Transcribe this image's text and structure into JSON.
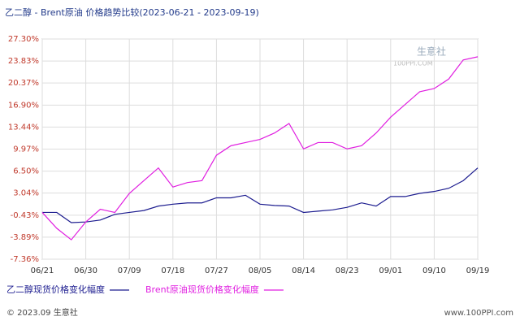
{
  "chart_data": {
    "type": "line",
    "title": "乙二醇 - Brent原油 价格趋势比较(2023-06-21 - 2023-09-19)",
    "categories": [
      "06/21",
      null,
      null,
      "06/30",
      null,
      null,
      "07/09",
      null,
      null,
      "07/18",
      null,
      null,
      "07/27",
      null,
      null,
      "08/05",
      null,
      null,
      "08/14",
      null,
      null,
      "08/23",
      null,
      null,
      "09/01",
      null,
      null,
      "09/10",
      null,
      null,
      "09/19"
    ],
    "series": [
      {
        "name": "乙二醇现货价格变化幅度",
        "color": "#1c1c8f",
        "values": [
          0,
          0,
          -1.6,
          -1.5,
          -1.2,
          -0.3,
          0,
          0.3,
          1.0,
          1.3,
          1.5,
          1.5,
          2.3,
          2.3,
          2.7,
          1.3,
          1.1,
          1.0,
          0,
          0.2,
          0.4,
          0.8,
          1.5,
          1.0,
          2.5,
          2.5,
          3.0,
          3.3,
          3.8,
          5.0,
          7.0
        ]
      },
      {
        "name": "Brent原油现货价格变化幅度",
        "color": "#e01ee0",
        "values": [
          0,
          -2.5,
          -4.3,
          -1.5,
          0.5,
          0,
          3,
          5,
          7,
          4,
          4.7,
          5,
          9,
          10.5,
          11,
          11.5,
          12.5,
          14,
          10,
          11,
          11,
          10,
          10.5,
          12.5,
          15,
          17,
          19,
          19.5,
          21,
          24,
          24.5
        ]
      }
    ],
    "ylim": [
      -7.36,
      27.3
    ],
    "yticks": [
      {
        "value": -7.36,
        "label": "-7.36%"
      },
      {
        "value": -3.89,
        "label": "-3.89%"
      },
      {
        "value": -0.43,
        "label": "-0.43%"
      },
      {
        "value": 3.04,
        "label": "3.04%"
      },
      {
        "value": 6.5,
        "label": "6.50%"
      },
      {
        "value": 9.97,
        "label": "9.97%"
      },
      {
        "value": 13.44,
        "label": "13.44%"
      },
      {
        "value": 16.9,
        "label": "16.90%"
      },
      {
        "value": 20.37,
        "label": "20.37%"
      },
      {
        "value": 23.83,
        "label": "23.83%"
      },
      {
        "value": 27.3,
        "label": "27.30%"
      }
    ],
    "grid": true,
    "logo": [
      "生意社",
      "100PPI.COM"
    ],
    "source": "© 2023.09 生意社",
    "watermark": "www.100PPI.com"
  }
}
